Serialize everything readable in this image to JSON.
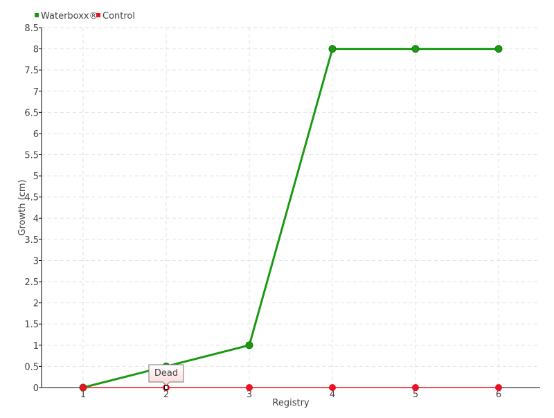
{
  "chart_data": {
    "type": "line",
    "title": "",
    "xlabel": "Registry",
    "ylabel": "Growth (cm)",
    "x": [
      1,
      2,
      3,
      4,
      5,
      6
    ],
    "xlim": [
      0.5,
      6.5
    ],
    "ylim": [
      0,
      8.5
    ],
    "yticks": [
      0,
      0.5,
      1,
      1.5,
      2,
      2.5,
      3,
      3.5,
      4,
      4.5,
      5,
      5.5,
      6,
      6.5,
      7,
      7.5,
      8,
      8.5
    ],
    "grid": true,
    "legend_position": "top-left",
    "series": [
      {
        "name": "Waterboxx®",
        "color": "#1a9a12",
        "values": [
          0,
          0.5,
          1,
          8,
          8,
          8
        ]
      },
      {
        "name": "Control",
        "color": "#ee1122",
        "values": [
          0,
          0,
          0,
          0,
          0,
          0
        ]
      }
    ],
    "tooltip": {
      "text": "Dead",
      "series": "Control",
      "x": 2,
      "y": 0
    }
  }
}
